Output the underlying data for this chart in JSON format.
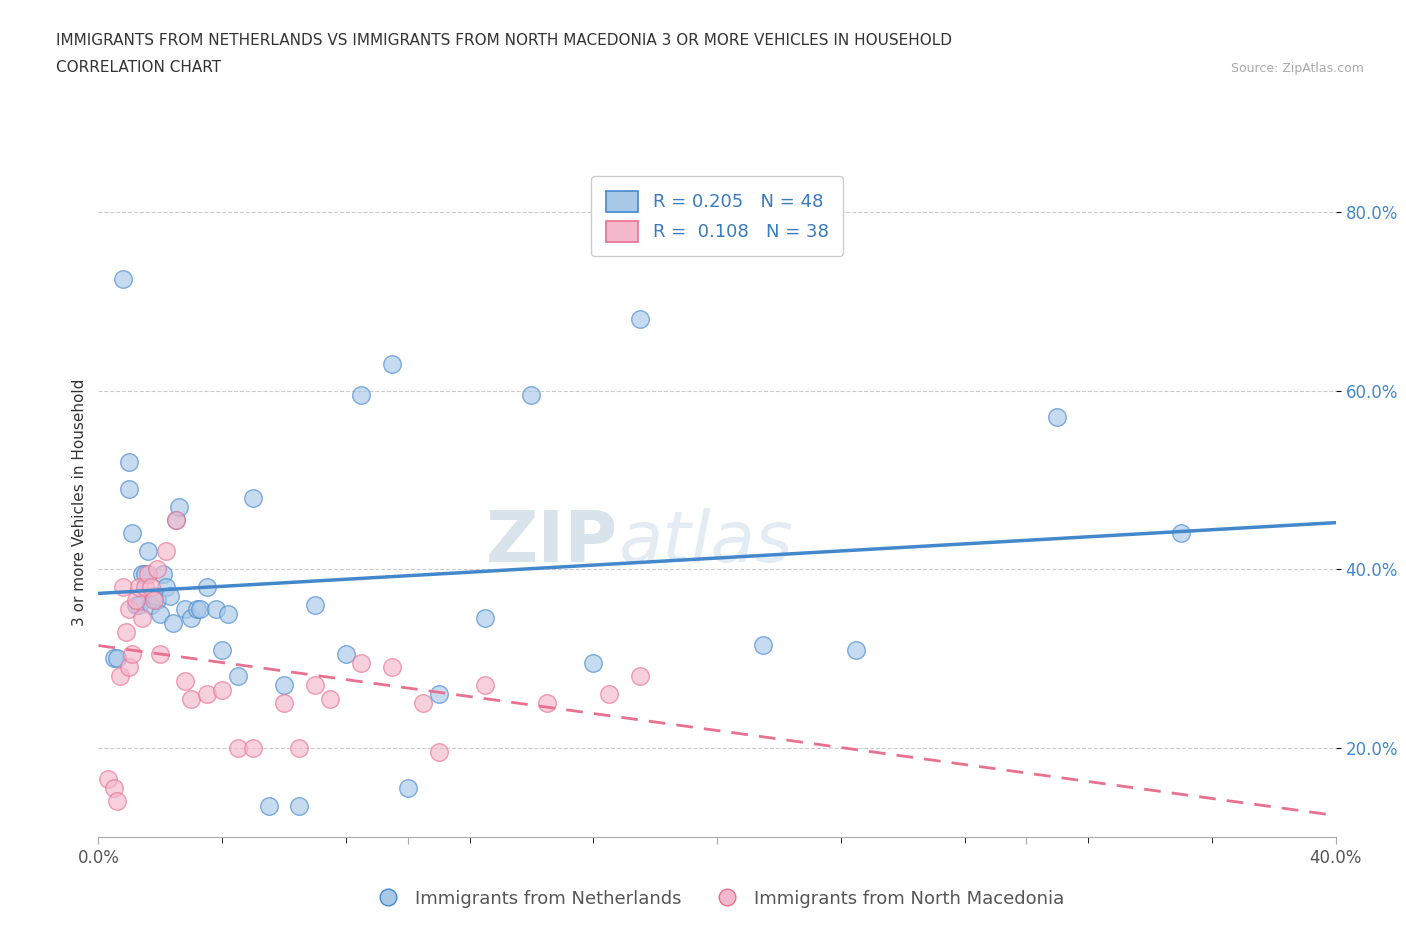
{
  "title_line1": "IMMIGRANTS FROM NETHERLANDS VS IMMIGRANTS FROM NORTH MACEDONIA 3 OR MORE VEHICLES IN HOUSEHOLD",
  "title_line2": "CORRELATION CHART",
  "source": "Source: ZipAtlas.com",
  "ylabel": "3 or more Vehicles in Household",
  "xlim": [
    0.0,
    0.4
  ],
  "ylim": [
    0.1,
    0.85
  ],
  "xticks": [
    0.0,
    0.1,
    0.2,
    0.3,
    0.4
  ],
  "xtick_labels": [
    "0.0%",
    "",
    "",
    "",
    "40.0%"
  ],
  "yticks": [
    0.2,
    0.4,
    0.6,
    0.8
  ],
  "ytick_labels": [
    "20.0%",
    "40.0%",
    "60.0%",
    "80.0%"
  ],
  "nl_color": "#a8c8e8",
  "nm_color": "#f4b8cc",
  "nl_line_color": "#4488cc",
  "nm_line_color": "#e87090",
  "R_nl": 0.205,
  "N_nl": 48,
  "R_nm": 0.108,
  "N_nm": 38,
  "legend_label_nl": "Immigrants from Netherlands",
  "legend_label_nm": "Immigrants from North Macedonia",
  "watermark_left": "ZIP",
  "watermark_right": "atlas",
  "background_color": "#ffffff",
  "grid_color": "#cccccc",
  "nl_x": [
    0.008,
    0.01,
    0.01,
    0.011,
    0.012,
    0.013,
    0.014,
    0.015,
    0.016,
    0.017,
    0.018,
    0.019,
    0.02,
    0.021,
    0.022,
    0.023,
    0.024,
    0.025,
    0.026,
    0.028,
    0.03,
    0.032,
    0.033,
    0.035,
    0.038,
    0.04,
    0.042,
    0.045,
    0.05,
    0.055,
    0.06,
    0.065,
    0.07,
    0.08,
    0.085,
    0.095,
    0.1,
    0.11,
    0.125,
    0.14,
    0.16,
    0.175,
    0.215,
    0.245,
    0.31,
    0.35,
    0.005,
    0.006
  ],
  "nl_y": [
    0.725,
    0.52,
    0.49,
    0.44,
    0.36,
    0.36,
    0.395,
    0.395,
    0.42,
    0.36,
    0.37,
    0.365,
    0.35,
    0.395,
    0.38,
    0.37,
    0.34,
    0.455,
    0.47,
    0.355,
    0.345,
    0.355,
    0.355,
    0.38,
    0.355,
    0.31,
    0.35,
    0.28,
    0.48,
    0.135,
    0.27,
    0.135,
    0.36,
    0.305,
    0.595,
    0.63,
    0.155,
    0.26,
    0.345,
    0.595,
    0.295,
    0.68,
    0.315,
    0.31,
    0.57,
    0.44,
    0.3,
    0.3
  ],
  "nm_x": [
    0.003,
    0.005,
    0.006,
    0.007,
    0.008,
    0.009,
    0.01,
    0.01,
    0.011,
    0.012,
    0.013,
    0.014,
    0.015,
    0.016,
    0.017,
    0.018,
    0.019,
    0.02,
    0.022,
    0.025,
    0.028,
    0.03,
    0.035,
    0.04,
    0.045,
    0.05,
    0.06,
    0.065,
    0.07,
    0.075,
    0.085,
    0.095,
    0.105,
    0.11,
    0.125,
    0.145,
    0.165,
    0.175
  ],
  "nm_y": [
    0.165,
    0.155,
    0.14,
    0.28,
    0.38,
    0.33,
    0.355,
    0.29,
    0.305,
    0.365,
    0.38,
    0.345,
    0.38,
    0.395,
    0.38,
    0.365,
    0.4,
    0.305,
    0.42,
    0.455,
    0.275,
    0.255,
    0.26,
    0.265,
    0.2,
    0.2,
    0.25,
    0.2,
    0.27,
    0.255,
    0.295,
    0.29,
    0.25,
    0.195,
    0.27,
    0.25,
    0.26,
    0.28
  ]
}
